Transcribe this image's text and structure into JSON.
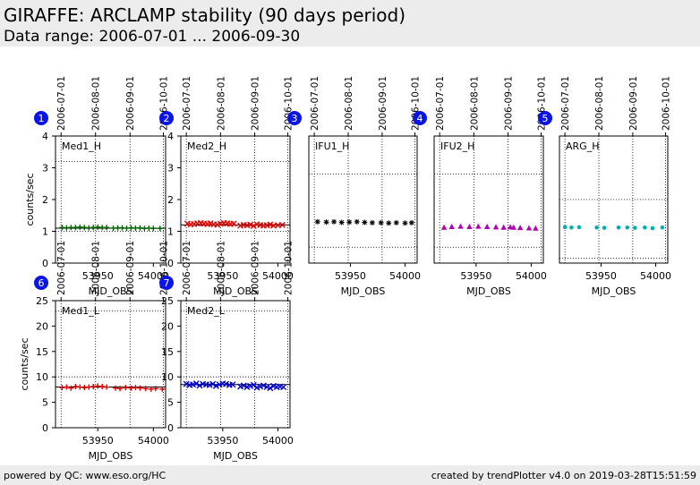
{
  "header": {
    "title": "GIRAFFE: ARCLAMP stability (90 days period)",
    "subtitle": "Data range: 2006-07-01 ... 2006-09-30"
  },
  "footer": {
    "left": "powered by QC: www.eso.org/HC",
    "right": "created by trendPlotter v4.0 on 2019-03-28T15:51:59"
  },
  "chart_data": [
    {
      "type": "scatter",
      "number": "1",
      "label": "Med1_H",
      "xlabel": "MJD_OBS",
      "ylabel": "counts/sec",
      "xlim": [
        53912,
        54011
      ],
      "ylim": [
        0,
        4
      ],
      "xticks": [
        53950,
        54000
      ],
      "yticks": [
        0,
        1,
        2,
        3,
        4
      ],
      "date_ticks": [
        {
          "mjd": 53917,
          "label": "2006-07-01"
        },
        {
          "mjd": 53948,
          "label": "2006-08-01"
        },
        {
          "mjd": 53979,
          "label": "2006-09-01"
        },
        {
          "mjd": 54009,
          "label": "2006-10-01"
        }
      ],
      "hlines": [
        {
          "y": 3.2,
          "style": "dotted"
        },
        {
          "y": 1.1,
          "style": "solid"
        },
        {
          "y": 1.0,
          "style": "dotted"
        }
      ],
      "marker": "+",
      "color": "#006400",
      "x": [
        53918,
        53922,
        53926,
        53930,
        53934,
        53938,
        53942,
        53946,
        53950,
        53954,
        53958,
        53964,
        53968,
        53972,
        53976,
        53980,
        53984,
        53988,
        53992,
        53996,
        54000,
        54006
      ],
      "y": [
        1.12,
        1.11,
        1.12,
        1.12,
        1.13,
        1.12,
        1.11,
        1.12,
        1.13,
        1.12,
        1.12,
        1.1,
        1.11,
        1.11,
        1.1,
        1.11,
        1.1,
        1.11,
        1.09,
        1.1,
        1.09,
        1.09
      ]
    },
    {
      "type": "scatter",
      "number": "2",
      "label": "Med2_H",
      "xlabel": "MJD_OBS",
      "ylabel": "",
      "xlim": [
        53912,
        54011
      ],
      "ylim": [
        0,
        4
      ],
      "xticks": [
        53950,
        54000
      ],
      "yticks": [
        0,
        1,
        2,
        3,
        4
      ],
      "date_ticks": [
        {
          "mjd": 53917,
          "label": "2006-07-01"
        },
        {
          "mjd": 53948,
          "label": "2006-08-01"
        },
        {
          "mjd": 53979,
          "label": "2006-09-01"
        },
        {
          "mjd": 54009,
          "label": "2006-10-01"
        }
      ],
      "hlines": [
        {
          "y": 3.2,
          "style": "dotted"
        },
        {
          "y": 1.2,
          "style": "solid"
        },
        {
          "y": 1.0,
          "style": "dotted"
        }
      ],
      "marker": "x",
      "color": "#dd0000",
      "x": [
        53918,
        53921,
        53924,
        53927,
        53930,
        53933,
        53936,
        53939,
        53942,
        53945,
        53948,
        53951,
        53954,
        53957,
        53960,
        53966,
        53969,
        53972,
        53975,
        53978,
        53981,
        53984,
        53987,
        53990,
        53993,
        53996,
        54000,
        54004
      ],
      "y": [
        1.24,
        1.22,
        1.23,
        1.25,
        1.26,
        1.24,
        1.23,
        1.25,
        1.22,
        1.21,
        1.24,
        1.26,
        1.25,
        1.23,
        1.24,
        1.18,
        1.2,
        1.19,
        1.21,
        1.17,
        1.22,
        1.2,
        1.18,
        1.19,
        1.21,
        1.18,
        1.19,
        1.2
      ]
    },
    {
      "type": "scatter",
      "number": "3",
      "label": "IFU1_H",
      "xlabel": "MJD_OBS",
      "ylabel": "",
      "xlim": [
        53912,
        54011
      ],
      "ylim": [
        0,
        4
      ],
      "xticks": [
        53950,
        54000
      ],
      "yticks": [],
      "date_ticks": [
        {
          "mjd": 53917,
          "label": "2006-07-01"
        },
        {
          "mjd": 53948,
          "label": "2006-08-01"
        },
        {
          "mjd": 53979,
          "label": "2006-09-01"
        },
        {
          "mjd": 54009,
          "label": "2006-10-01"
        }
      ],
      "hlines": [
        {
          "y": 2.8,
          "style": "dotted"
        },
        {
          "y": 0.5,
          "style": "dotted"
        }
      ],
      "marker": "*",
      "color": "#000000",
      "x": [
        53920,
        53928,
        53935,
        53942,
        53949,
        53956,
        53963,
        53970,
        53978,
        53985,
        53992,
        54000,
        54006
      ],
      "y": [
        1.3,
        1.29,
        1.3,
        1.28,
        1.29,
        1.3,
        1.28,
        1.27,
        1.27,
        1.26,
        1.27,
        1.26,
        1.27
      ]
    },
    {
      "type": "scatter",
      "number": "4",
      "label": "IFU2_H",
      "xlabel": "MJD_OBS",
      "ylabel": "",
      "xlim": [
        53912,
        54011
      ],
      "ylim": [
        0,
        4
      ],
      "xticks": [
        53950,
        54000
      ],
      "yticks": [],
      "date_ticks": [
        {
          "mjd": 53917,
          "label": "2006-07-01"
        },
        {
          "mjd": 53948,
          "label": "2006-08-01"
        },
        {
          "mjd": 53979,
          "label": "2006-09-01"
        },
        {
          "mjd": 54009,
          "label": "2006-10-01"
        }
      ],
      "hlines": [
        {
          "y": 2.8,
          "style": "dotted"
        },
        {
          "y": 0.5,
          "style": "dotted"
        }
      ],
      "marker": "triangle",
      "color": "#b000b0",
      "x": [
        53921,
        53928,
        53936,
        53944,
        53952,
        53960,
        53968,
        53975,
        53981,
        53984,
        53990,
        53998,
        54004
      ],
      "y": [
        1.12,
        1.14,
        1.15,
        1.14,
        1.15,
        1.14,
        1.13,
        1.12,
        1.13,
        1.12,
        1.11,
        1.1,
        1.09
      ]
    },
    {
      "type": "scatter",
      "number": "5",
      "label": "ARG_H",
      "xlabel": "MJD_OBS",
      "ylabel": "",
      "xlim": [
        53912,
        54011
      ],
      "ylim": [
        0,
        4
      ],
      "xticks": [
        53950,
        54000
      ],
      "yticks": [],
      "date_ticks": [
        {
          "mjd": 53917,
          "label": "2006-07-01"
        },
        {
          "mjd": 53948,
          "label": "2006-08-01"
        },
        {
          "mjd": 53979,
          "label": "2006-09-01"
        },
        {
          "mjd": 54009,
          "label": "2006-10-01"
        }
      ],
      "hlines": [
        {
          "y": 2.0,
          "style": "dotted"
        },
        {
          "y": 0.15,
          "style": "dotted"
        }
      ],
      "marker": "o",
      "color": "#00b0b0",
      "x": [
        53917,
        53923,
        53930,
        53946,
        53953,
        53966,
        53974,
        53981,
        53990,
        53997,
        54006
      ],
      "y": [
        1.13,
        1.12,
        1.13,
        1.12,
        1.11,
        1.12,
        1.12,
        1.11,
        1.12,
        1.1,
        1.12
      ]
    },
    {
      "type": "scatter",
      "number": "6",
      "label": "Med1_L",
      "xlabel": "MJD_OBS",
      "ylabel": "counts/sec",
      "xlim": [
        53912,
        54011
      ],
      "ylim": [
        0,
        25
      ],
      "xticks": [
        53950,
        54000
      ],
      "yticks": [
        0,
        5,
        10,
        15,
        20,
        25
      ],
      "date_ticks": [
        {
          "mjd": 53917,
          "label": "2006-07-01"
        },
        {
          "mjd": 53948,
          "label": "2006-08-01"
        },
        {
          "mjd": 53979,
          "label": "2006-09-01"
        },
        {
          "mjd": 54009,
          "label": "2006-10-01"
        }
      ],
      "hlines": [
        {
          "y": 23.0,
          "style": "dotted"
        },
        {
          "y": 10.0,
          "style": "dotted"
        },
        {
          "y": 8.0,
          "style": "solid"
        }
      ],
      "marker": "+",
      "color": "#dd0000",
      "x": [
        53918,
        53922,
        53926,
        53930,
        53934,
        53938,
        53942,
        53946,
        53950,
        53954,
        53958,
        53966,
        53970,
        53975,
        53980,
        53984,
        53988,
        53993,
        53998,
        54002,
        54008
      ],
      "y": [
        7.9,
        8.0,
        7.8,
        8.1,
        8.0,
        7.9,
        8.0,
        8.1,
        8.2,
        8.1,
        8.0,
        7.8,
        7.7,
        7.9,
        7.8,
        7.9,
        7.8,
        7.7,
        7.6,
        7.7,
        7.6
      ]
    },
    {
      "type": "scatter",
      "number": "7",
      "label": "Med2_L",
      "xlabel": "MJD_OBS",
      "ylabel": "",
      "xlim": [
        53912,
        54011
      ],
      "ylim": [
        0,
        25
      ],
      "xticks": [
        53950,
        54000
      ],
      "yticks": [
        0,
        5,
        10,
        15,
        20,
        25
      ],
      "date_ticks": [
        {
          "mjd": 53917,
          "label": "2006-07-01"
        },
        {
          "mjd": 53948,
          "label": "2006-08-01"
        },
        {
          "mjd": 53979,
          "label": "2006-09-01"
        },
        {
          "mjd": 54009,
          "label": "2006-10-01"
        }
      ],
      "hlines": [
        {
          "y": 23.0,
          "style": "dotted"
        },
        {
          "y": 10.0,
          "style": "dotted"
        },
        {
          "y": 8.5,
          "style": "solid"
        }
      ],
      "marker": "x",
      "color": "#0000cc",
      "x": [
        53917,
        53920,
        53923,
        53926,
        53929,
        53932,
        53935,
        53938,
        53941,
        53944,
        53947,
        53950,
        53953,
        53956,
        53959,
        53966,
        53969,
        53972,
        53975,
        53978,
        53981,
        53984,
        53987,
        53990,
        53993,
        53996,
        53999,
        54002,
        54005
      ],
      "y": [
        8.6,
        8.4,
        8.5,
        8.7,
        8.3,
        8.6,
        8.5,
        8.4,
        8.6,
        8.2,
        8.5,
        8.7,
        8.6,
        8.4,
        8.5,
        8.1,
        8.3,
        8.0,
        8.2,
        8.4,
        7.9,
        8.1,
        8.3,
        8.0,
        7.8,
        8.2,
        8.0,
        8.1,
        8.0
      ]
    }
  ]
}
